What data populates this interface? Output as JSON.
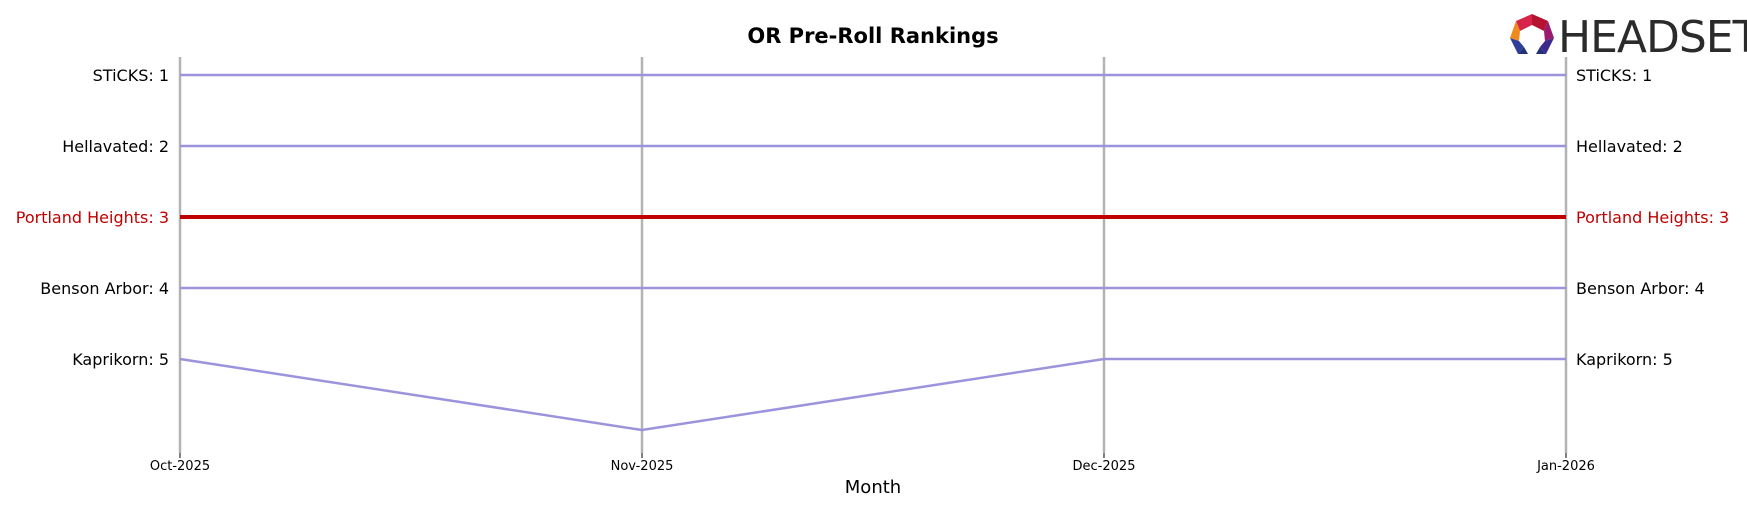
{
  "chart_data": {
    "type": "line",
    "title": "OR Pre-Roll Rankings",
    "xlabel": "Month",
    "ylabel": "",
    "categories": [
      "Oct-2025",
      "Nov-2025",
      "Dec-2025",
      "Jan-2026"
    ],
    "y_inverted": true,
    "ylim": [
      1,
      6
    ],
    "grid": "vertical",
    "series": [
      {
        "name": "STiCKS",
        "values": [
          1,
          1,
          1,
          1
        ],
        "highlight": false,
        "label_left": "STiCKS: 1",
        "label_right": "STiCKS: 1"
      },
      {
        "name": "Hellavated",
        "values": [
          2,
          2,
          2,
          2
        ],
        "highlight": false,
        "label_left": "Hellavated: 2",
        "label_right": "Hellavated: 2"
      },
      {
        "name": "Portland Heights",
        "values": [
          3,
          3,
          3,
          3
        ],
        "highlight": true,
        "label_left": "Portland Heights: 3",
        "label_right": "Portland Heights: 3"
      },
      {
        "name": "Benson Arbor",
        "values": [
          4,
          4,
          4,
          4
        ],
        "highlight": false,
        "label_left": "Benson Arbor: 4",
        "label_right": "Benson Arbor: 4"
      },
      {
        "name": "Kaprikorn",
        "values": [
          5,
          6,
          5,
          5
        ],
        "highlight": false,
        "label_left": "Kaprikorn: 5",
        "label_right": "Kaprikorn: 5"
      }
    ],
    "colors": {
      "default": "#9b93dc",
      "highlight": "#c00000",
      "gridline": "#b3b3b3"
    }
  },
  "logo": {
    "text": "HEADSET",
    "name": "headset-logo"
  }
}
